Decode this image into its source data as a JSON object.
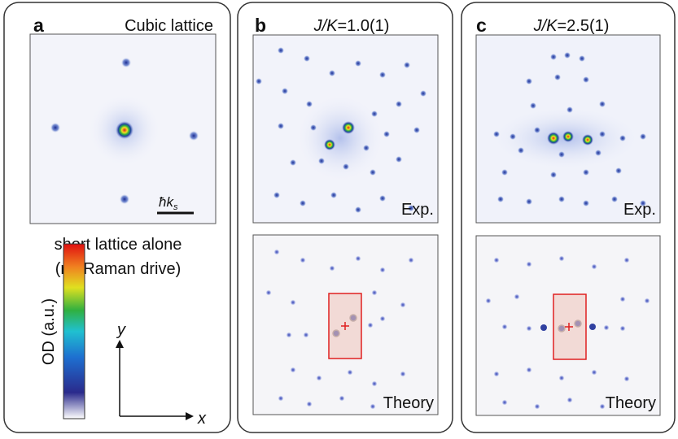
{
  "panels": [
    {
      "letter": "a",
      "title": "Cubic lattice",
      "scale_bar": {
        "main": "ħk",
        "sub": "s"
      }
    },
    {
      "letter": "b",
      "title": {
        "italic": "J/K",
        "rest": "=1.0(1)"
      },
      "exp_label": "Exp.",
      "theory_label": "Theory"
    },
    {
      "letter": "c",
      "title": {
        "italic": "J/K",
        "rest": "=2.5(1)"
      },
      "exp_label": "Exp.",
      "theory_label": "Theory"
    }
  ],
  "legend": {
    "caption_line1": "short lattice alone",
    "caption_line2": "(no Raman drive)",
    "colorbar_label": "OD (a.u.)",
    "axis_y": "y",
    "axis_x": "x"
  }
}
